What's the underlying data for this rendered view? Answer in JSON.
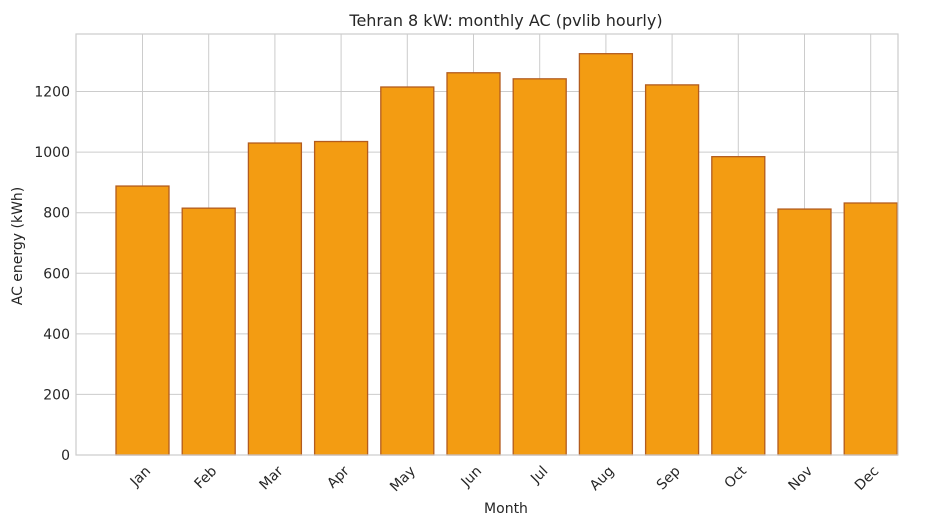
{
  "chart_data": {
    "type": "bar",
    "title": "Tehran 8 kW: monthly AC (pvlib hourly)",
    "xlabel": "Month",
    "ylabel": "AC energy (kWh)",
    "categories": [
      "Jan",
      "Feb",
      "Mar",
      "Apr",
      "May",
      "Jun",
      "Jul",
      "Aug",
      "Sep",
      "Oct",
      "Nov",
      "Dec"
    ],
    "values": [
      888,
      815,
      1030,
      1035,
      1215,
      1262,
      1242,
      1325,
      1222,
      985,
      812,
      832
    ],
    "ylim": [
      0,
      1390
    ],
    "yticks": [
      0,
      200,
      400,
      600,
      800,
      1000,
      1200
    ],
    "ytick_labels": [
      "0",
      "200",
      "400",
      "600",
      "800",
      "1000",
      "1200"
    ],
    "grid": true,
    "bar_color": "#f39c12",
    "bar_edge_color": "#b35c1e"
  }
}
